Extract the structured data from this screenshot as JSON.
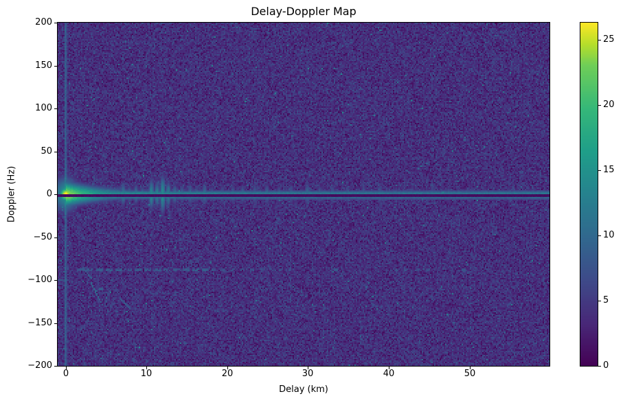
{
  "figure": {
    "background": "#ffffff"
  },
  "chart_data": {
    "type": "heatmap",
    "title": "Delay-Doppler Map",
    "xlabel": "Delay (km)",
    "ylabel": "Doppler (Hz)",
    "xlim": [
      -1.0,
      59.9
    ],
    "ylim": [
      -200,
      200
    ],
    "x_tick_values": [
      0,
      10,
      20,
      30,
      40,
      50
    ],
    "x_tick_labels": [
      "0",
      "10",
      "20",
      "30",
      "40",
      "50"
    ],
    "y_tick_values": [
      200,
      150,
      100,
      50,
      0,
      -50,
      -100,
      -150,
      -200
    ],
    "y_tick_labels": [
      "200",
      "150",
      "100",
      "50",
      "0",
      "−50",
      "−100",
      "−150",
      "−200"
    ],
    "colorbar": {
      "vmin": 0,
      "vmax": 26.3,
      "tick_values": [
        0,
        5,
        10,
        15,
        20,
        25
      ],
      "tick_labels": [
        "0",
        "5",
        "10",
        "15",
        "20",
        "25"
      ],
      "colormap": "viridis",
      "stops": [
        [
          0,
          "#440154"
        ],
        [
          0.125,
          "#482878"
        ],
        [
          0.25,
          "#3e4a89"
        ],
        [
          0.375,
          "#31688e"
        ],
        [
          0.5,
          "#26828e"
        ],
        [
          0.625,
          "#1f9e89"
        ],
        [
          0.75,
          "#35b779"
        ],
        [
          0.875,
          "#6ece58"
        ],
        [
          0.9375,
          "#b5de2b"
        ],
        [
          1,
          "#fde725"
        ]
      ]
    },
    "grid": {
      "cols": 358,
      "rows": 250,
      "seed": 42
    },
    "noise": {
      "mean": 4.1,
      "sd": 1.5,
      "min": 0.4,
      "speckle_prob": 0.004,
      "speckle_base": 3.5,
      "speckle_span": 6
    },
    "features": {
      "origin_peak": {
        "delay_km": 0,
        "doppler_hz": 0,
        "peak": 27,
        "sigma_d": 0.6,
        "sigma_f": 6,
        "halo_peak": 15,
        "halo_sigma_d": 1.2,
        "halo_sigma_f": 15
      },
      "zero_delay_column": {
        "delay_km": 0,
        "value": 8.5,
        "rand_span": 3,
        "halo": 9,
        "halo_sigma_hz": 16,
        "width_km": 0.12
      },
      "zero_doppler_null": {
        "doppler_rows": [
          125,
          126
        ],
        "values": [
          0.35,
          0.9
        ]
      },
      "zero_doppler_ridge": {
        "amp_near": 16,
        "decay_near_km": 4.5,
        "amp_far": 6.6,
        "decay_far_km": 40,
        "base": 2.2,
        "sigma_hz_base": 2.1,
        "sigma_hz_near": 8,
        "sigma_decay_km": 7
      },
      "ridge_lines": {
        "above_main": 10.2,
        "above_second": 8.8,
        "below_main": 8.3,
        "below_second": 5.8,
        "above_outer": 5.4,
        "boost_near": 5,
        "boost_decay_km": 10
      },
      "spikes": [
        [
          1.0,
          10,
          8
        ],
        [
          1.7,
          9,
          7
        ],
        [
          2.5,
          11,
          9
        ],
        [
          3.2,
          9,
          7
        ],
        [
          4.0,
          10,
          8
        ],
        [
          4.8,
          9,
          9
        ],
        [
          5.6,
          10,
          8
        ],
        [
          6.3,
          9,
          7
        ],
        [
          7.1,
          11,
          10
        ],
        [
          7.9,
          9,
          8
        ],
        [
          8.7,
          10,
          9
        ],
        [
          9.5,
          9,
          7
        ],
        [
          10.6,
          13,
          13
        ],
        [
          11.3,
          12,
          11
        ],
        [
          12.0,
          14,
          16
        ],
        [
          12.7,
          12,
          11
        ],
        [
          13.5,
          10,
          9
        ],
        [
          14.4,
          9,
          8
        ],
        [
          15.4,
          9,
          10
        ],
        [
          16.2,
          8,
          8
        ],
        [
          17.2,
          10,
          9
        ],
        [
          18.1,
          8,
          7
        ],
        [
          19.4,
          8,
          8
        ],
        [
          20.7,
          8,
          9
        ],
        [
          21.9,
          9,
          8
        ],
        [
          23.4,
          8,
          10
        ],
        [
          24.9,
          9,
          9
        ],
        [
          26.4,
          8,
          8
        ],
        [
          27.9,
          8,
          9
        ],
        [
          29.9,
          9,
          10
        ],
        [
          31.4,
          8,
          8
        ],
        [
          33.0,
          8,
          9
        ],
        [
          34.9,
          8,
          8
        ],
        [
          36.9,
          8,
          8
        ],
        [
          38.9,
          8,
          9
        ],
        [
          40.9,
          7,
          7
        ],
        [
          42.9,
          7,
          8
        ],
        [
          45.4,
          7,
          7
        ],
        [
          47.4,
          7,
          7
        ],
        [
          49.6,
          11,
          4
        ],
        [
          51.9,
          7,
          6
        ],
        [
          54.9,
          7,
          6
        ],
        [
          57.9,
          7,
          6
        ]
      ],
      "clutter_lines": [
        {
          "doppler": -88,
          "d0": 1.3,
          "d1": 18,
          "value": 8,
          "dash": [
            5,
            2
          ]
        },
        {
          "doppler": -88,
          "d0": 18,
          "d1": 28,
          "value": 7,
          "dash": [
            3,
            4
          ]
        },
        {
          "doppler": -88,
          "d0": 40.5,
          "d1": 46,
          "value": 6.5,
          "dash": [
            3,
            5
          ]
        },
        {
          "doppler": -131,
          "d0": 2,
          "d1": 30,
          "value": 7.5,
          "dash": [
            1,
            3
          ]
        },
        {
          "doppler": -136,
          "d0": 3,
          "d1": 26,
          "value": 6.8,
          "dash": [
            1,
            5
          ]
        },
        {
          "doppler": -100,
          "d0": -1,
          "d1": 0.6,
          "value": 7.5,
          "dash": [
            9,
            1
          ]
        }
      ],
      "diagonal_streaks": [
        {
          "from": [
            3.1,
            -103
          ],
          "to": [
            4.6,
            -130
          ],
          "value": 9
        },
        {
          "from": [
            2.1,
            -86
          ],
          "to": [
            3.3,
            -99
          ],
          "value": 7.5
        },
        {
          "from": [
            6.6,
            -120
          ],
          "to": [
            8.1,
            -134
          ],
          "value": 7
        }
      ],
      "dots": [
        {
          "d": 4.3,
          "f": -110,
          "value": 8.5
        },
        {
          "d": 33.5,
          "f": -88,
          "value": 8
        },
        {
          "d": 49.3,
          "f": -88,
          "value": 7.5
        }
      ]
    }
  }
}
